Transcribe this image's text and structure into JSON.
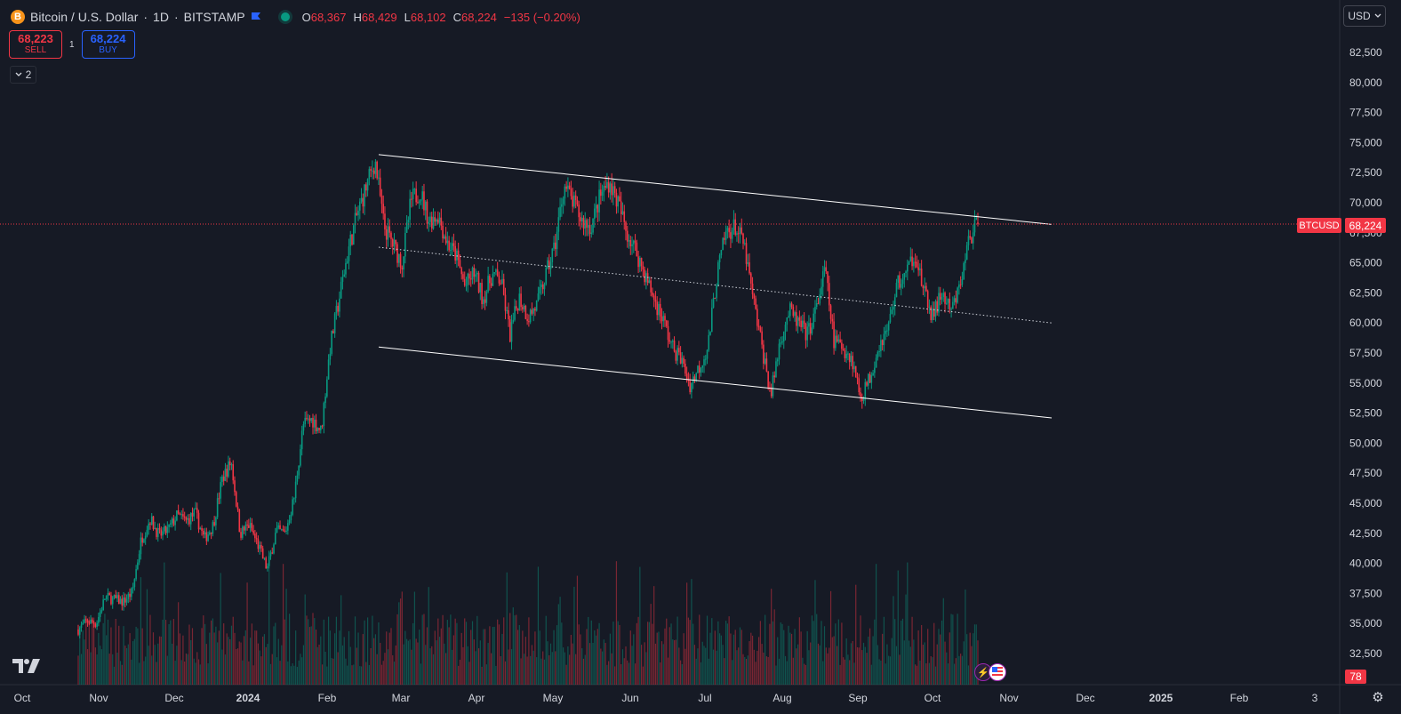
{
  "legend": {
    "logo": "B",
    "symbol": "Bitcoin / U.S. Dollar",
    "interval": "1D",
    "exchange": "BITSTAMP",
    "open_label": "O",
    "open": "68,367",
    "high_label": "H",
    "high": "68,429",
    "low_label": "L",
    "low": "68,102",
    "close_label": "C",
    "close": "68,224",
    "change": "−135 (−0.20%)"
  },
  "trade": {
    "sell_price": "68,223",
    "sell_label": "SELL",
    "spread": "1",
    "buy_price": "68,224",
    "buy_label": "BUY"
  },
  "indicators_toggle": {
    "count": "2"
  },
  "currency": "USD",
  "price_badge": "68,224",
  "symbol_badge": "BTCUSD",
  "volume_badge": "78",
  "colors": {
    "up": "#089981",
    "down": "#f23645",
    "background": "#161a25",
    "grid": "#232632",
    "text": "#d1d4dc"
  },
  "icons": [
    "bitcoin-logo",
    "flag-icon",
    "market-open-icon",
    "chevron-down-icon",
    "tradingview-logo",
    "lightning-icon",
    "us-flag-icon",
    "settings-icon"
  ],
  "chart_data": {
    "type": "candlestick",
    "title": "Bitcoin / U.S. Dollar · 1D · BITSTAMP",
    "y_axis_ticks": [
      "82,500",
      "80,000",
      "77,500",
      "75,000",
      "72,500",
      "70,000",
      "67,500",
      "65,000",
      "62,500",
      "60,000",
      "57,500",
      "55,000",
      "52,500",
      "50,000",
      "47,500",
      "45,000",
      "42,500",
      "40,000",
      "37,500",
      "35,000",
      "32,500"
    ],
    "x_axis_ticks": [
      "Oct",
      "Nov",
      "Dec",
      "2024",
      "Feb",
      "Mar",
      "Apr",
      "May",
      "Jun",
      "Jul",
      "Aug",
      "Sep",
      "Oct",
      "Nov",
      "Dec",
      "2025",
      "Feb",
      "3"
    ],
    "ylim": [
      30500,
      84000
    ],
    "last_price": 68224,
    "closes": [
      34500,
      35200,
      35000,
      37200,
      37000,
      36800,
      37600,
      42000,
      43700,
      42300,
      42800,
      44000,
      43500,
      44200,
      42000,
      43200,
      47000,
      48500,
      42500,
      43200,
      41500,
      39500,
      42700,
      42500,
      45500,
      51500,
      52000,
      51000,
      58000,
      62000,
      66000,
      69000,
      71300,
      73500,
      68000,
      66500,
      65000,
      70200,
      71000,
      68500,
      69000,
      66700,
      65600,
      63000,
      64200,
      62000,
      64000,
      63500,
      59000,
      62200,
      60500,
      61500,
      64000,
      66500,
      71500,
      70000,
      68500,
      68000,
      70500,
      71800,
      70000,
      67500,
      66000,
      64000,
      62000,
      60300,
      58000,
      57000,
      54800,
      56300,
      58000,
      64000,
      67500,
      68000,
      66500,
      62000,
      58000,
      54000,
      58500,
      61000,
      60000,
      59000,
      61000,
      64500,
      58500,
      58000,
      57000,
      53800,
      55500,
      58200,
      59500,
      63200,
      64000,
      66000,
      62500,
      60500,
      62500,
      60800,
      63000,
      67000,
      68224
    ],
    "trendlines": [
      {
        "name": "upper",
        "start": {
          "date": "2024-02-28",
          "price": 74000
        },
        "end": {
          "date": "2024-11-15",
          "price": 68200
        }
      },
      {
        "name": "middle",
        "start": {
          "date": "2024-02-28",
          "price": 66300
        },
        "end": {
          "date": "2024-11-15",
          "price": 60000
        }
      },
      {
        "name": "lower",
        "start": {
          "date": "2024-02-28",
          "price": 58000
        },
        "end": {
          "date": "2024-11-15",
          "price": 52100
        }
      }
    ]
  }
}
